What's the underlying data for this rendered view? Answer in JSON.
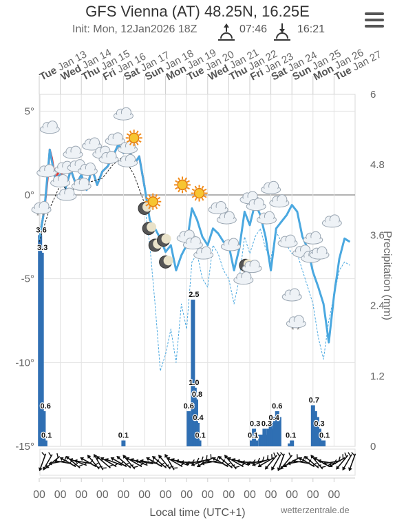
{
  "header": {
    "title": "GFS Vienna (AT) 48.25N, 16.25E",
    "subtitle": "Init: Mon, 12Jan2026 18Z",
    "sunrise": "07:46",
    "sunset": "16:21"
  },
  "footer": {
    "credit": "wetterzentrale.de"
  },
  "chart_data": {
    "type": "line",
    "title": "GFS Vienna (AT) 48.25N, 16.25E",
    "xlabel": "Local time (UTC+1)",
    "ylabel": "",
    "y2label": "Precipitation (mm)",
    "ylim": [
      -15,
      6
    ],
    "y2lim": [
      0,
      6
    ],
    "y_ticks": [
      "5°",
      "0°",
      "-5°",
      "-10°",
      "-15°"
    ],
    "y2_ticks": [
      "6",
      "4.8",
      "3.6",
      "2.4",
      "1.2",
      "0"
    ],
    "x_ticks": [
      "00",
      "00",
      "00",
      "00",
      "00",
      "00",
      "00",
      "00",
      "00",
      "00",
      "00",
      "00",
      "00",
      "00",
      "00"
    ],
    "grid": true,
    "days": [
      {
        "dow": "Tue",
        "date": "Jan 13"
      },
      {
        "dow": "Wed",
        "date": "Jan 14"
      },
      {
        "dow": "Thu",
        "date": "Jan 15"
      },
      {
        "dow": "Fri",
        "date": "Jan 16"
      },
      {
        "dow": "Sat",
        "date": "Jan 17"
      },
      {
        "dow": "Sun",
        "date": "Jan 18"
      },
      {
        "dow": "Mon",
        "date": "Jan 19"
      },
      {
        "dow": "Tue",
        "date": "Jan 20"
      },
      {
        "dow": "Wed",
        "date": "Jan 21"
      },
      {
        "dow": "Thu",
        "date": "Jan 22"
      },
      {
        "dow": "Fri",
        "date": "Jan 23"
      },
      {
        "dow": "Sat",
        "date": "Jan 24"
      },
      {
        "dow": "Sun",
        "date": "Jan 25"
      },
      {
        "dow": "Mon",
        "date": "Jan 26"
      },
      {
        "dow": "Tue",
        "date": "Jan 27"
      }
    ],
    "series": [
      {
        "color": "#e53935",
        "x": [
          0,
          0.25,
          0.4,
          0.5,
          0.6,
          0.75,
          0.9,
          1.0,
          1.25,
          1.5,
          1.75,
          2.0,
          2.25,
          2.5,
          2.75,
          3.0,
          3.25,
          3.5,
          3.75,
          4.0,
          4.25,
          4.5,
          4.75,
          5.0
        ],
        "values": [
          -2.7,
          -0.8,
          1.0,
          2.7,
          2.2,
          1.0,
          1.3,
          1.6,
          0.4,
          1.5,
          0.6,
          1.2,
          0.3,
          1.6,
          0.6,
          1.4,
          1.7,
          2.3,
          3.0,
          2.5,
          2.8,
          1.8,
          2.3,
          0.5
        ]
      },
      {
        "color": "#4aa8e0",
        "x": [
          0,
          0.25,
          0.5,
          0.75,
          1.0,
          1.25,
          1.5,
          1.75,
          2.0,
          2.25,
          2.5,
          2.75,
          3.0,
          3.25,
          3.5,
          3.75,
          4.0,
          4.25,
          4.5,
          4.75,
          5.0,
          5.25,
          5.5,
          5.75,
          6.0,
          6.25,
          6.5,
          6.75,
          7.0,
          7.25,
          7.5,
          7.75,
          8.0,
          8.25,
          8.5,
          8.75,
          9.0,
          9.25,
          9.5,
          9.75,
          10.0,
          10.25,
          10.5,
          10.75,
          11.0,
          11.25,
          11.5,
          11.75,
          12.0,
          12.25,
          12.5,
          12.75,
          13.0,
          13.25,
          13.5,
          13.75,
          14.0,
          14.25,
          14.5,
          14.75
        ],
        "values": [
          -2.7,
          -0.8,
          2.7,
          1.0,
          1.2,
          0.4,
          1.5,
          0.6,
          1.2,
          0.3,
          1.6,
          0.6,
          1.4,
          1.7,
          2.3,
          3.0,
          2.5,
          2.8,
          1.8,
          2.3,
          0.5,
          -1.5,
          -2.0,
          -2.6,
          -3.4,
          -3.0,
          -4.5,
          -3.6,
          -3.0,
          -0.8,
          -1.5,
          -2.5,
          -3.0,
          -2.0,
          -2.3,
          -2.8,
          -3.0,
          -4.5,
          -3.2,
          -1.0,
          -1.8,
          -0.5,
          -1.2,
          -2.5,
          -4.5,
          -2.0,
          -1.6,
          -1.2,
          -0.6,
          -1.0,
          -2.5,
          -3.2,
          -4.6,
          -5.5,
          -6.5,
          -8.8,
          -6.0,
          -3.8,
          -2.6,
          -2.8
        ]
      },
      {
        "color": "#222222",
        "dashed": true,
        "x": [
          0,
          0.5,
          1.0,
          1.5,
          2.0,
          2.5,
          3.0,
          3.5,
          4.0,
          4.5,
          5.0
        ],
        "values": [
          -2.8,
          -0.8,
          0.6,
          0.2,
          0.7,
          0.8,
          1.0,
          1.8,
          2.3,
          1.2,
          -0.5
        ]
      },
      {
        "color": "#4aa8e0",
        "dashed": true,
        "x": [
          5.0,
          5.25,
          5.5,
          5.75,
          6.0,
          6.25,
          6.5,
          6.75,
          7.0,
          7.25,
          7.5,
          7.75,
          8.0,
          8.25,
          8.5,
          8.75,
          9.0,
          9.25,
          9.5,
          9.75,
          10.0,
          10.25,
          10.5,
          10.75,
          11.0,
          11.25,
          11.5,
          11.75,
          12.0,
          12.25,
          12.5,
          12.75,
          13.0,
          13.25,
          13.5,
          13.75,
          14.0,
          14.25,
          14.5,
          14.75
        ],
        "values": [
          -0.5,
          -3.0,
          -6.5,
          -10.5,
          -9.5,
          -8.0,
          -10.0,
          -6.5,
          -8.0,
          -4.0,
          -3.5,
          -5.0,
          -5.5,
          -3.0,
          -3.5,
          -4.5,
          -5.0,
          -6.5,
          -5.0,
          -2.5,
          -3.5,
          -2.5,
          -2.0,
          -3.2,
          -3.8,
          -2.2,
          -2.8,
          -3.0,
          -3.5,
          -3.5,
          -4.5,
          -5.5,
          -6.5,
          -8.5,
          -9.8,
          -7.5,
          -6.0,
          -4.5,
          -4.0,
          -4.2
        ]
      }
    ],
    "precip": {
      "color": "#2f6fb3",
      "bars": [
        {
          "x": 0.04,
          "v": 3.6
        },
        {
          "x": 0.12,
          "v": 3.3
        },
        {
          "x": 0.21,
          "v": 0.6
        },
        {
          "x": 0.29,
          "v": 0.1
        },
        {
          "x": 4.0,
          "v": 0.1
        },
        {
          "x": 7.1,
          "v": 0.6
        },
        {
          "x": 7.2,
          "v": 0.5
        },
        {
          "x": 7.3,
          "v": 2.5
        },
        {
          "x": 7.38,
          "v": 1.0
        },
        {
          "x": 7.45,
          "v": 0.8
        },
        {
          "x": 7.52,
          "v": 0.4
        },
        {
          "x": 7.6,
          "v": 0.1
        },
        {
          "x": 10.1,
          "v": 0.1
        },
        {
          "x": 10.2,
          "v": 0.3
        },
        {
          "x": 10.3,
          "v": 0.1
        },
        {
          "x": 10.5,
          "v": 0.2
        },
        {
          "x": 10.6,
          "v": 0.2
        },
        {
          "x": 10.7,
          "v": 0.3
        },
        {
          "x": 10.8,
          "v": 0.2
        },
        {
          "x": 10.9,
          "v": 0.3
        },
        {
          "x": 11.0,
          "v": 0.4
        },
        {
          "x": 11.1,
          "v": 0.3
        },
        {
          "x": 11.2,
          "v": 0.5
        },
        {
          "x": 11.3,
          "v": 0.6
        },
        {
          "x": 11.4,
          "v": 0.5
        },
        {
          "x": 11.9,
          "v": 0.05
        },
        {
          "x": 12.0,
          "v": 0.1
        },
        {
          "x": 13.0,
          "v": 0.7
        },
        {
          "x": 13.1,
          "v": 0.6
        },
        {
          "x": 13.2,
          "v": 0.5
        },
        {
          "x": 13.3,
          "v": 0.3
        },
        {
          "x": 13.4,
          "v": 0.1
        },
        {
          "x": 13.5,
          "v": 0.1
        }
      ],
      "labels": [
        {
          "x": 0.1,
          "v": 3.6,
          "text": "3.6"
        },
        {
          "x": 0.15,
          "v": 3.3,
          "text": "3.3"
        },
        {
          "x": 0.3,
          "v": 0.6,
          "text": "0.6"
        },
        {
          "x": 0.35,
          "v": 0.1,
          "text": "0.1"
        },
        {
          "x": 4.0,
          "v": 0.1,
          "text": "0.1"
        },
        {
          "x": 7.35,
          "v": 2.5,
          "text": "2.5"
        },
        {
          "x": 7.35,
          "v": 1.0,
          "text": "1.0"
        },
        {
          "x": 7.5,
          "v": 0.8,
          "text": "0.8"
        },
        {
          "x": 7.1,
          "v": 0.6,
          "text": "0.6"
        },
        {
          "x": 7.55,
          "v": 0.4,
          "text": "0.4"
        },
        {
          "x": 7.65,
          "v": 0.1,
          "text": "0.1"
        },
        {
          "x": 10.15,
          "v": 0.1,
          "text": "0.1"
        },
        {
          "x": 10.25,
          "v": 0.3,
          "text": "0.3"
        },
        {
          "x": 10.8,
          "v": 0.3,
          "text": "0.3"
        },
        {
          "x": 11.3,
          "v": 0.6,
          "text": "0.6"
        },
        {
          "x": 11.15,
          "v": 0.4,
          "text": "0.4"
        },
        {
          "x": 11.95,
          "v": 0.1,
          "text": "0.1"
        },
        {
          "x": 13.05,
          "v": 0.7,
          "text": "0.7"
        },
        {
          "x": 13.3,
          "v": 0.3,
          "text": "0.3"
        },
        {
          "x": 13.55,
          "v": 0.1,
          "text": "0.1"
        }
      ]
    },
    "weather_icons": [
      {
        "x": 0.1,
        "v": -0.8,
        "icon": "snow-cloud-icon"
      },
      {
        "x": 0.5,
        "v": 4.0,
        "icon": "cloud-icon"
      },
      {
        "x": 0.35,
        "v": 1.4,
        "icon": "cloud-icon"
      },
      {
        "x": 1.0,
        "v": 0.8,
        "icon": "cloud-icon"
      },
      {
        "x": 1.2,
        "v": 1.6,
        "icon": "cloud-icon"
      },
      {
        "x": 1.6,
        "v": 2.5,
        "icon": "cloud-icon"
      },
      {
        "x": 1.3,
        "v": 0.0,
        "icon": "cloud-icon"
      },
      {
        "x": 1.8,
        "v": 1.7,
        "icon": "cloud-icon"
      },
      {
        "x": 2.0,
        "v": 0.6,
        "icon": "cloud-icon"
      },
      {
        "x": 2.5,
        "v": 3.0,
        "icon": "cloud-icon"
      },
      {
        "x": 2.3,
        "v": 1.5,
        "icon": "cloud-icon"
      },
      {
        "x": 3.0,
        "v": 2.5,
        "icon": "cloud-icon"
      },
      {
        "x": 3.3,
        "v": 2.2,
        "icon": "cloud-icon"
      },
      {
        "x": 3.6,
        "v": 3.3,
        "icon": "cloud-icon"
      },
      {
        "x": 4.0,
        "v": 4.8,
        "icon": "cloud-icon"
      },
      {
        "x": 4.2,
        "v": 2.8,
        "icon": "cloud-icon"
      },
      {
        "x": 4.5,
        "v": 3.4,
        "icon": "sun-icon"
      },
      {
        "x": 4.2,
        "v": 2.0,
        "icon": "cloud-icon"
      },
      {
        "x": 5.0,
        "v": -0.8,
        "icon": "moon-icon"
      },
      {
        "x": 5.4,
        "v": -0.4,
        "icon": "sun-icon"
      },
      {
        "x": 5.2,
        "v": -2.0,
        "icon": "moon-icon"
      },
      {
        "x": 5.5,
        "v": -3.0,
        "icon": "moon-icon"
      },
      {
        "x": 5.9,
        "v": -2.7,
        "icon": "moon-icon"
      },
      {
        "x": 6.0,
        "v": -4.0,
        "icon": "moon-icon"
      },
      {
        "x": 6.8,
        "v": 0.6,
        "icon": "sun-icon"
      },
      {
        "x": 7.6,
        "v": 0.1,
        "icon": "sun-icon"
      },
      {
        "x": 7.0,
        "v": -2.5,
        "icon": "cloud-icon"
      },
      {
        "x": 7.3,
        "v": -2.9,
        "icon": "cloud-icon"
      },
      {
        "x": 7.8,
        "v": -3.5,
        "icon": "cloud-icon"
      },
      {
        "x": 8.5,
        "v": -0.8,
        "icon": "cloud-icon"
      },
      {
        "x": 8.9,
        "v": -1.4,
        "icon": "cloud-icon"
      },
      {
        "x": 9.1,
        "v": -3.0,
        "icon": "cloud-icon"
      },
      {
        "x": 9.8,
        "v": -4.2,
        "icon": "moon-icon"
      },
      {
        "x": 10.1,
        "v": -4.3,
        "icon": "cloud-icon"
      },
      {
        "x": 9.7,
        "v": -5.0,
        "icon": "cloud-icon"
      },
      {
        "x": 10.0,
        "v": -0.2,
        "icon": "cloud-icon"
      },
      {
        "x": 10.3,
        "v": -0.6,
        "icon": "cloud-icon"
      },
      {
        "x": 10.8,
        "v": -1.4,
        "icon": "cloud-icon"
      },
      {
        "x": 11.0,
        "v": 0.4,
        "icon": "cloud-icon"
      },
      {
        "x": 11.4,
        "v": -0.4,
        "icon": "cloud-icon"
      },
      {
        "x": 11.8,
        "v": -2.8,
        "icon": "cloud-icon"
      },
      {
        "x": 12.0,
        "v": -6.0,
        "icon": "cloud-icon"
      },
      {
        "x": 12.2,
        "v": -7.6,
        "icon": "snow-cloud-icon"
      },
      {
        "x": 12.5,
        "v": -3.4,
        "icon": "cloud-icon"
      },
      {
        "x": 12.9,
        "v": -3.7,
        "icon": "cloud-icon"
      },
      {
        "x": 13.0,
        "v": -2.6,
        "icon": "cloud-icon"
      },
      {
        "x": 13.3,
        "v": -3.5,
        "icon": "cloud-icon"
      },
      {
        "x": 13.9,
        "v": -1.6,
        "icon": "cloud-icon"
      }
    ],
    "wind_directions_deg": [
      200,
      210,
      230,
      260,
      280,
      300,
      310,
      290,
      280,
      300,
      320,
      330,
      310,
      300,
      290,
      300,
      310,
      320,
      300,
      290,
      280,
      280,
      300,
      310,
      320,
      330,
      300,
      290,
      280,
      270,
      260,
      250,
      240,
      260,
      280,
      300,
      310,
      320,
      300,
      290,
      280,
      270,
      260,
      250,
      240,
      220,
      210,
      200,
      220,
      240,
      260,
      280,
      300,
      310,
      320,
      300,
      280,
      260,
      240,
      220,
      210,
      200
    ]
  }
}
